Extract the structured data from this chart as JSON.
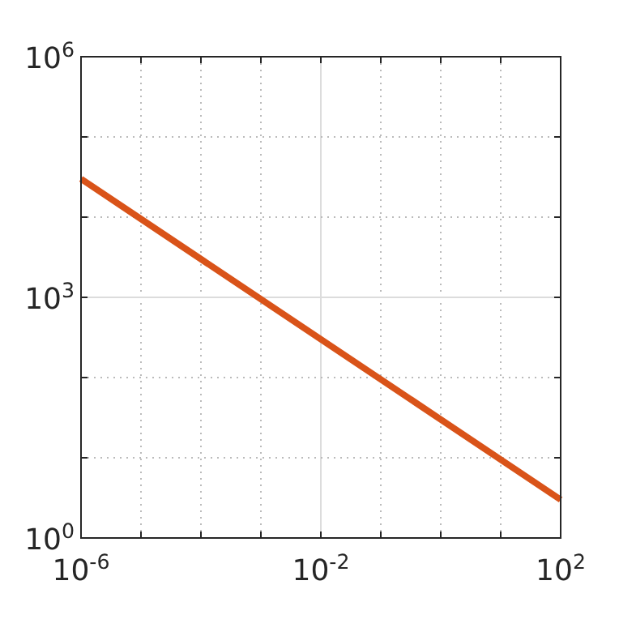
{
  "chart_data": {
    "type": "line",
    "log": "xy",
    "x": [
      1e-06,
      0.01,
      100.0
    ],
    "series": [
      {
        "color": "#d95319",
        "values": [
          30000,
          300,
          3
        ]
      }
    ],
    "xlim": [
      1e-06,
      100.0
    ],
    "ylim": [
      1,
      1000000.0
    ],
    "xticks": [
      {
        "value": 1e-06,
        "label": "10$^{-6}$"
      },
      {
        "value": 1e-05,
        "label": null
      },
      {
        "value": 0.0001,
        "label": null
      },
      {
        "value": 0.001,
        "label": null
      },
      {
        "value": 0.01,
        "label": "10$^{-2}$"
      },
      {
        "value": 0.1,
        "label": null
      },
      {
        "value": 1,
        "label": null
      },
      {
        "value": 10,
        "label": null
      },
      {
        "value": 100,
        "label": "10$^{2}$"
      }
    ],
    "yticks": [
      {
        "value": 1,
        "label": "10$^{0}$"
      },
      {
        "value": 10,
        "label": null
      },
      {
        "value": 100,
        "label": null
      },
      {
        "value": 1000,
        "label": "10$^{3}$"
      },
      {
        "value": 10000.0,
        "label": null
      },
      {
        "value": 100000.0,
        "label": null
      },
      {
        "value": 1000000.0,
        "label": "10$^{6}$"
      }
    ],
    "grid": true,
    "marker": "none",
    "line_style": "solid"
  }
}
